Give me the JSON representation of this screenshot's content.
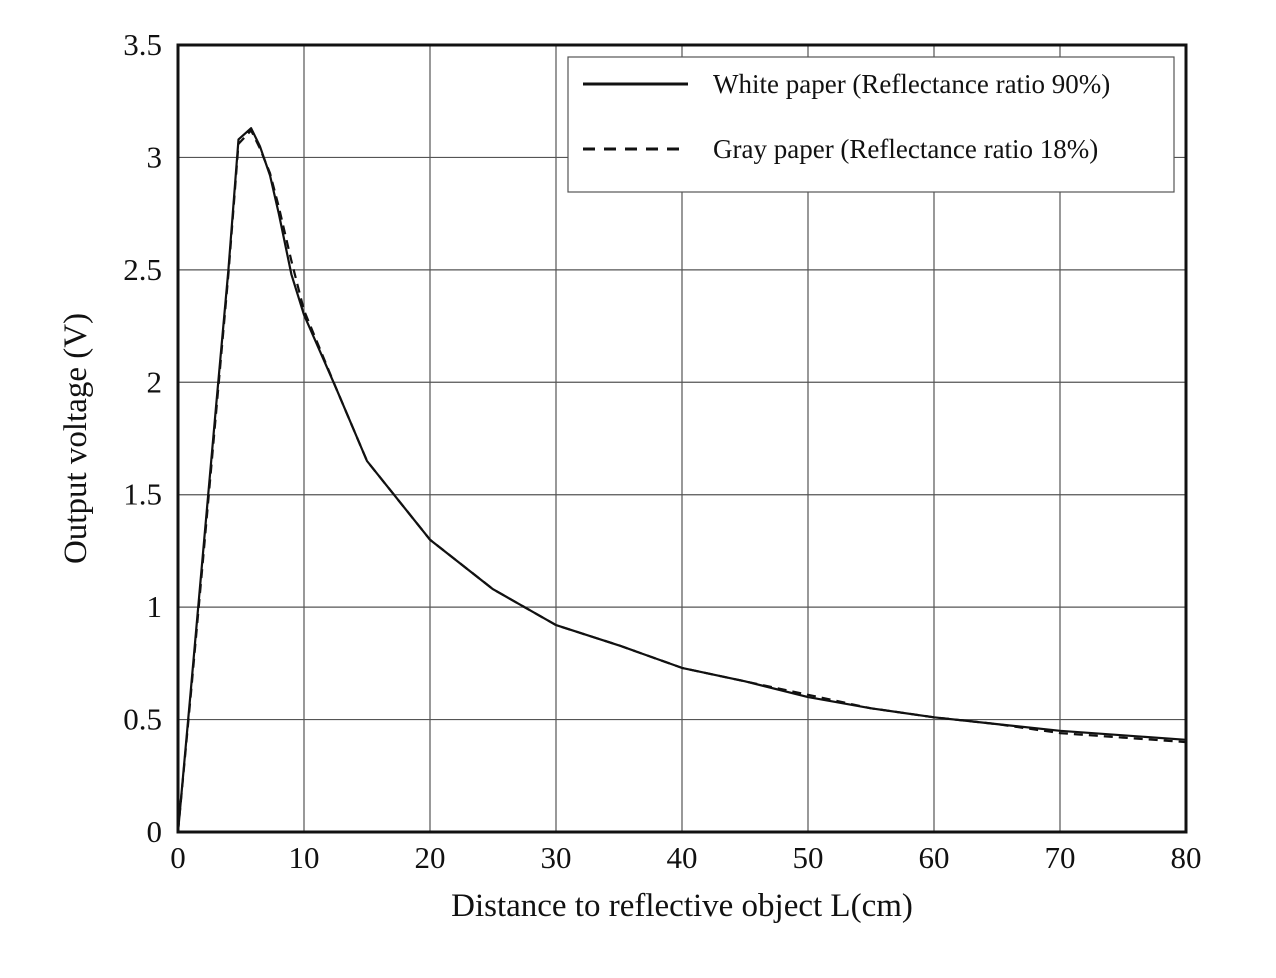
{
  "chart_data": {
    "type": "line",
    "title": "",
    "xlabel": "Distance to reflective object L(cm)",
    "ylabel": "Output voltage (V)",
    "xlim": [
      0,
      80
    ],
    "ylim": [
      0,
      3.5
    ],
    "xticks": [
      0,
      10,
      20,
      30,
      40,
      50,
      60,
      70,
      80
    ],
    "yticks": [
      0,
      0.5,
      1,
      1.5,
      2,
      2.5,
      3,
      3.5
    ],
    "xtick_labels": [
      "0",
      "10",
      "20",
      "30",
      "40",
      "50",
      "60",
      "70",
      "80"
    ],
    "ytick_labels": [
      "0",
      "0.5",
      "1",
      "1.5",
      "2",
      "2.5",
      "3",
      "3.5"
    ],
    "grid": true,
    "legend_position": "top-right",
    "series": [
      {
        "name": "White paper (Reflectance ratio 90%)",
        "style": "solid",
        "color": "#111111",
        "x": [
          0,
          1,
          2,
          3,
          4,
          4.8,
          5.8,
          6.5,
          7.3,
          8,
          9,
          10,
          12.5,
          15,
          20,
          25,
          30,
          35,
          40,
          45,
          50,
          55,
          60,
          65,
          70,
          75,
          80
        ],
        "y": [
          0,
          0.62,
          1.25,
          1.88,
          2.5,
          3.08,
          3.13,
          3.05,
          2.92,
          2.75,
          2.48,
          2.3,
          1.98,
          1.65,
          1.3,
          1.08,
          0.92,
          0.83,
          0.73,
          0.67,
          0.6,
          0.55,
          0.51,
          0.48,
          0.45,
          0.43,
          0.41
        ]
      },
      {
        "name": "Gray paper (Reflectance ratio 18%)",
        "style": "dashed",
        "color": "#111111",
        "x": [
          0,
          1,
          2,
          3,
          4,
          4.8,
          5.8,
          6.5,
          7.3,
          8,
          9,
          10,
          12.5,
          15,
          20,
          25,
          30,
          35,
          40,
          45,
          50,
          55,
          60,
          65,
          70,
          75,
          80
        ],
        "y": [
          0,
          0.6,
          1.22,
          1.85,
          2.48,
          3.06,
          3.12,
          3.04,
          2.93,
          2.78,
          2.54,
          2.32,
          1.98,
          1.65,
          1.3,
          1.08,
          0.92,
          0.83,
          0.73,
          0.67,
          0.61,
          0.55,
          0.51,
          0.48,
          0.44,
          0.42,
          0.4
        ]
      }
    ]
  }
}
